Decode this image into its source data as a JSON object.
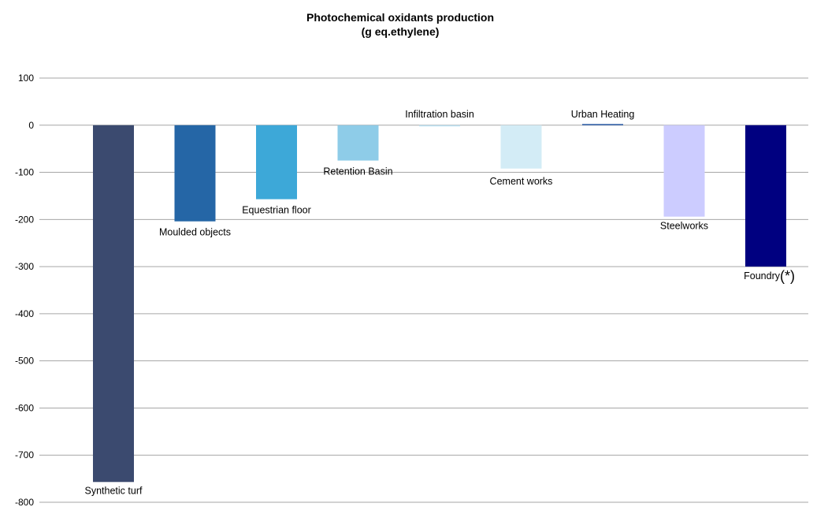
{
  "chart_data": {
    "type": "bar",
    "title": "Photochemical oxidants production",
    "subtitle": "(g eq.ethylene)",
    "xlabel": "",
    "ylabel": "",
    "ylim": [
      -800,
      100
    ],
    "yticks": [
      "100",
      "0",
      "-100",
      "-200",
      "-300",
      "-400",
      "-500",
      "-600",
      "-700",
      "-800"
    ],
    "grid": true,
    "categories": [
      {
        "label": "Synthetic turf",
        "value": -757,
        "color": "#3b4a6f"
      },
      {
        "label": "Moulded objects",
        "value": -204,
        "color": "#2566a6"
      },
      {
        "label": "Equestrian floor",
        "value": -157,
        "color": "#3da8d8"
      },
      {
        "label": "Retention Basin",
        "value": -75,
        "color": "#8ecce8"
      },
      {
        "label": "Infiltration basin",
        "value": -2,
        "color": "#bde3f3"
      },
      {
        "label": "Cement works",
        "value": -92,
        "color": "#d3ecf6"
      },
      {
        "label": "Urban Heating",
        "value": 2,
        "color": "#2a5ca8"
      },
      {
        "label": "Steelworks",
        "value": -194,
        "color": "#ccccff"
      },
      {
        "label": "Foundry",
        "label_note": "(*)",
        "value": -300,
        "color": "#000080"
      }
    ]
  }
}
